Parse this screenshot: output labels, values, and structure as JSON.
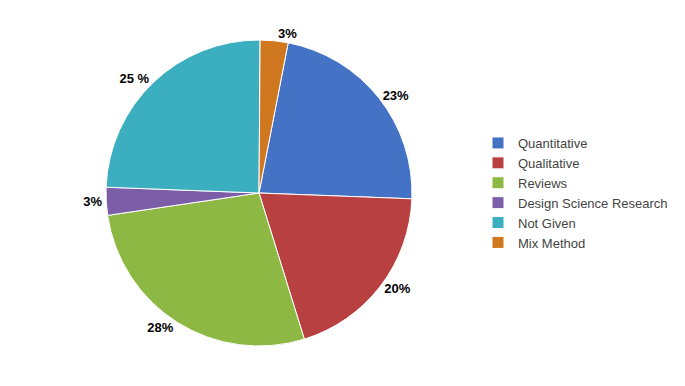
{
  "chart_data": {
    "type": "pie",
    "categories": [
      "Quantitative",
      "Qualitative",
      "Reviews",
      "Design Science Research",
      "Not Given",
      "Mix Method"
    ],
    "values": [
      23,
      20,
      28,
      3,
      25,
      3
    ],
    "value_labels": [
      "23%",
      "20%",
      "28%",
      "3%",
      "25 %",
      "3%"
    ],
    "colors": [
      "#4472C4",
      "#B94040",
      "#8DB843",
      "#7B5EA7",
      "#3BAEC0",
      "#D07820"
    ],
    "data_labels": true,
    "legend": "right"
  }
}
